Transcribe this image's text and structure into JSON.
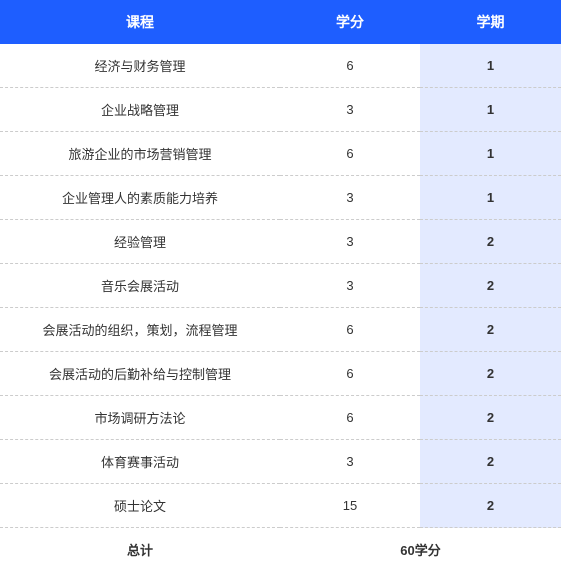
{
  "header": {
    "course": "课程",
    "credit": "学分",
    "semester": "学期"
  },
  "rows": [
    {
      "course": "经济与财务管理",
      "credit": "6",
      "semester": "1"
    },
    {
      "course": "企业战略管理",
      "credit": "3",
      "semester": "1"
    },
    {
      "course": "旅游企业的市场营销管理",
      "credit": "6",
      "semester": "1"
    },
    {
      "course": "企业管理人的素质能力培养",
      "credit": "3",
      "semester": "1"
    },
    {
      "course": "经验管理",
      "credit": "3",
      "semester": "2"
    },
    {
      "course": "音乐会展活动",
      "credit": "3",
      "semester": "2"
    },
    {
      "course": "会展活动的组织，策划，流程管理",
      "credit": "6",
      "semester": "2"
    },
    {
      "course": "会展活动的后勤补给与控制管理",
      "credit": "6",
      "semester": "2"
    },
    {
      "course": "市场调研方法论",
      "credit": "6",
      "semester": "2"
    },
    {
      "course": "体育赛事活动",
      "credit": "3",
      "semester": "2"
    },
    {
      "course": "硕士论文",
      "credit": "15",
      "semester": "2"
    }
  ],
  "total": {
    "label": "总计",
    "value": "60学分"
  },
  "colors": {
    "header_bg": "#1e5eff",
    "header_text": "#ffffff",
    "sem_bg": "#e3eaff",
    "border": "#cccccc",
    "text": "#333333"
  }
}
